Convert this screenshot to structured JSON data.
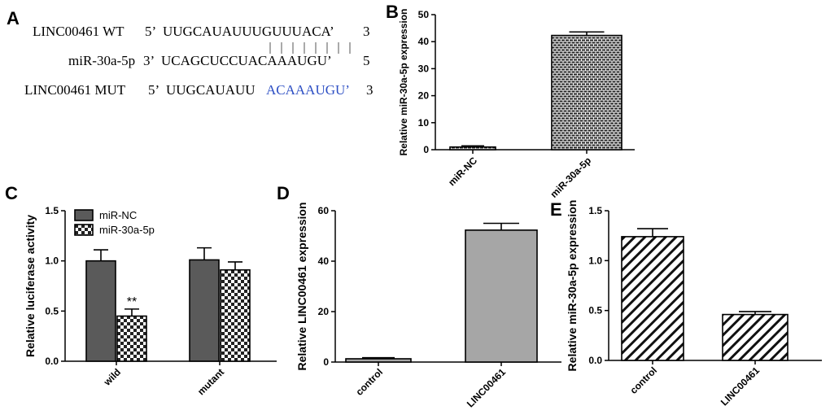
{
  "panel_labels": [
    "A",
    "B",
    "C",
    "D",
    "E"
  ],
  "sequences": {
    "wt": {
      "name": "LINC00461 WT",
      "prefix": "5’",
      "seq": "UUGCAUAUUUGUUUACA’",
      "suffix": "3"
    },
    "mir": {
      "name": "miR-30a-5p",
      "prefix": "3’",
      "seq": "UCAGCUCCUACAAAUGU’",
      "suffix": "5"
    },
    "mut": {
      "name": "LINC00461 MUT",
      "prefix": "5’",
      "seq_plain": "UUGCAUAUU",
      "seq_mut": "ACAAAUGU’",
      "suffix": "3"
    }
  },
  "colors": {
    "mutation_text": "#2d4fc4",
    "dark_bar": "#5a5a5a",
    "light_bar": "#a6a6a6"
  },
  "chart_data": [
    {
      "panel": "B",
      "type": "bar",
      "categories": [
        "miR-NC",
        "miR-30a-5p"
      ],
      "values": [
        1.0,
        42.3
      ],
      "errors": [
        0.4,
        1.3
      ],
      "ylabel": "Relative miR-30a-5p expression",
      "ylim": [
        0,
        50
      ],
      "yticks": [
        0,
        10,
        20,
        30,
        40,
        50
      ],
      "pattern": "brick"
    },
    {
      "panel": "C",
      "type": "bar",
      "categories": [
        "wild",
        "mutant"
      ],
      "series": [
        {
          "name": "miR-NC",
          "values": [
            1.0,
            1.01
          ],
          "errors": [
            0.11,
            0.12
          ],
          "pattern": "solid-dark"
        },
        {
          "name": "miR-30a-5p",
          "values": [
            0.45,
            0.91
          ],
          "errors": [
            0.07,
            0.08
          ],
          "pattern": "checker"
        }
      ],
      "annotations": [
        {
          "category": "wild",
          "series": "miR-30a-5p",
          "text": "**"
        }
      ],
      "ylabel": "Relative luciferase activity",
      "ylim": [
        0,
        1.5
      ],
      "yticks": [
        "0.0",
        "0.5",
        "1.0",
        "1.5"
      ],
      "legend": "top-left"
    },
    {
      "panel": "D",
      "type": "bar",
      "categories": [
        "control",
        "LINC00461"
      ],
      "values": [
        1.3,
        52.3
      ],
      "errors": [
        0.4,
        2.7
      ],
      "ylabel": "Relative LINC00461 expression",
      "ylim": [
        0,
        60
      ],
      "yticks": [
        0,
        20,
        40,
        60
      ],
      "pattern": "solid-light"
    },
    {
      "panel": "E",
      "type": "bar",
      "categories": [
        "control",
        "LINC00461"
      ],
      "values": [
        1.24,
        0.46
      ],
      "errors": [
        0.08,
        0.03
      ],
      "ylabel": "Relative miR-30a-5p expression",
      "ylim": [
        0,
        1.5
      ],
      "yticks": [
        "0.0",
        "0.5",
        "1.0",
        "1.5"
      ],
      "pattern": "diagonal"
    }
  ]
}
